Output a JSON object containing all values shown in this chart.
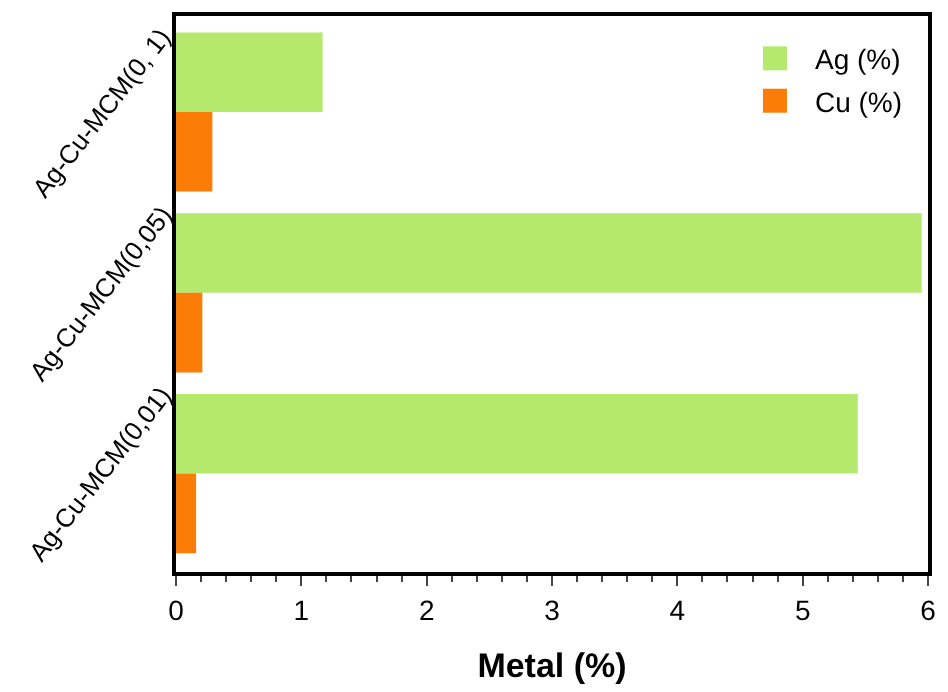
{
  "chart_data": {
    "type": "bar",
    "orientation": "horizontal",
    "xlabel": "Metal (%)",
    "categories": [
      "Ag-Cu-MCM(0, 1)",
      "Ag-Cu-MCM(0,05)",
      "Ag-Cu-MCM(0,01)"
    ],
    "series": [
      {
        "name": "Ag (%)",
        "color": "#b5e96d",
        "values": [
          1.17,
          5.95,
          5.44
        ]
      },
      {
        "name": "Cu (%)",
        "color": "#fb7d07",
        "values": [
          0.29,
          0.21,
          0.16
        ]
      }
    ],
    "xlim": [
      0,
      6
    ],
    "xticks": [
      0,
      1,
      2,
      3,
      4,
      5,
      6
    ],
    "legend": "top right"
  }
}
